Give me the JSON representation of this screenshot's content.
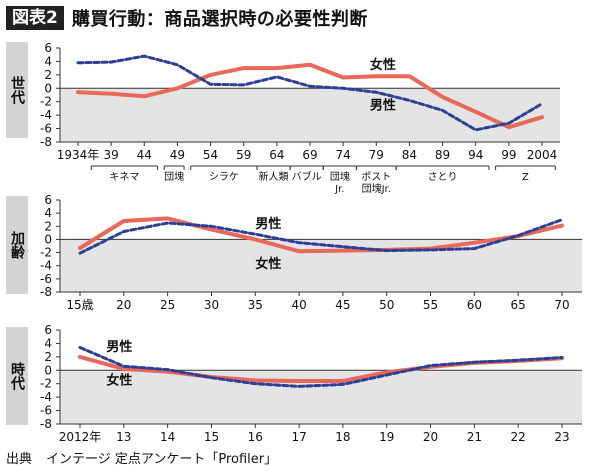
{
  "header": {
    "badge": "図表2",
    "title": "購買行動：商品選択時の必要性判断"
  },
  "footer": {
    "source_label": "出典",
    "source_text": "インテージ 定点アンケート「Profiler」"
  },
  "colors": {
    "female": "#e8685a",
    "male": "#2b3f95",
    "below_zero": "#e4e4e4",
    "zero_line": "#333333"
  },
  "chart_data": [
    {
      "type": "line",
      "panel_label": "世代",
      "x_tick_labels": [
        "1934年",
        "39",
        "44",
        "49",
        "54",
        "59",
        "64",
        "69",
        "74",
        "79",
        "84",
        "89",
        "94",
        "99",
        "2004"
      ],
      "x": [
        1934,
        1939,
        1944,
        1949,
        1954,
        1959,
        1964,
        1969,
        1974,
        1979,
        1984,
        1989,
        1994,
        1999,
        2004
      ],
      "ylim": [
        -8,
        6
      ],
      "yticks": [
        6,
        4,
        2,
        0,
        -2,
        -4,
        -6,
        -8
      ],
      "generation_groups": [
        {
          "label": "キネマ",
          "from": 1936,
          "to": 1946
        },
        {
          "label": "団塊",
          "from": 1947,
          "to": 1950
        },
        {
          "label": "シラケ",
          "from": 1951,
          "to": 1961
        },
        {
          "label": "新人類",
          "from": 1961,
          "to": 1966
        },
        {
          "label": "バブル",
          "from": 1966,
          "to": 1971
        },
        {
          "label": "団塊\nJr.",
          "from": 1971,
          "to": 1976
        },
        {
          "label": "ポスト\n団塊Jr.",
          "from": 1976,
          "to": 1982
        },
        {
          "label": "さとり",
          "from": 1982,
          "to": 1996
        },
        {
          "label": "Z",
          "from": 1997,
          "to": 2006
        }
      ],
      "series": [
        {
          "name": "女性",
          "style": "solid",
          "values": [
            -0.6,
            -0.8,
            -1.2,
            0.0,
            2.0,
            3.0,
            3.0,
            3.5,
            1.6,
            1.8,
            1.8,
            -1.3,
            -3.5,
            -5.8,
            -4.3
          ]
        },
        {
          "name": "男性",
          "style": "dashed",
          "values": [
            3.8,
            3.9,
            4.8,
            3.5,
            0.6,
            0.5,
            1.7,
            0.3,
            0.0,
            -0.6,
            -1.8,
            -3.3,
            -6.2,
            -5.2,
            -2.3
          ]
        }
      ],
      "annotations": [
        {
          "text": "女性",
          "x": 1980,
          "y": 3.6
        },
        {
          "text": "男性",
          "x": 1980,
          "y": -2.4
        }
      ]
    },
    {
      "type": "line",
      "panel_label": "加齢",
      "x_tick_labels": [
        "15歳",
        "20",
        "25",
        "30",
        "35",
        "40",
        "45",
        "50",
        "55",
        "60",
        "65",
        "70"
      ],
      "x": [
        15,
        20,
        25,
        30,
        35,
        40,
        45,
        50,
        55,
        60,
        65,
        70
      ],
      "ylim": [
        -8,
        6
      ],
      "yticks": [
        6,
        4,
        2,
        0,
        -2,
        -4,
        -6,
        -8
      ],
      "series": [
        {
          "name": "女性",
          "style": "solid",
          "values": [
            -1.3,
            2.8,
            3.2,
            1.5,
            0.0,
            -1.8,
            -1.7,
            -1.6,
            -1.4,
            -0.5,
            0.5,
            2.1
          ]
        },
        {
          "name": "男性",
          "style": "dashed",
          "values": [
            -2.1,
            1.2,
            2.5,
            2.0,
            0.8,
            -0.5,
            -1.1,
            -1.7,
            -1.6,
            -1.4,
            0.6,
            3.0
          ]
        }
      ],
      "annotations": [
        {
          "text": "男性",
          "x": 36.5,
          "y": 2.5
        },
        {
          "text": "女性",
          "x": 36.5,
          "y": -3.6
        }
      ]
    },
    {
      "type": "line",
      "panel_label": "時代",
      "x_tick_labels": [
        "2012年",
        "13",
        "14",
        "15",
        "16",
        "17",
        "18",
        "19",
        "20",
        "21",
        "22",
        "23"
      ],
      "x": [
        2012,
        2013,
        2014,
        2015,
        2016,
        2017,
        2018,
        2019,
        2020,
        2021,
        2022,
        2023
      ],
      "ylim": [
        -8,
        6
      ],
      "yticks": [
        6,
        4,
        2,
        0,
        -2,
        -4,
        -6,
        -8
      ],
      "series": [
        {
          "name": "女性",
          "style": "solid",
          "values": [
            2.0,
            0.2,
            -0.2,
            -1.0,
            -1.5,
            -1.6,
            -1.6,
            -0.3,
            0.5,
            1.1,
            1.4,
            1.8
          ]
        },
        {
          "name": "男性",
          "style": "dashed",
          "values": [
            3.4,
            0.6,
            0.1,
            -1.1,
            -2.0,
            -2.4,
            -2.1,
            -0.7,
            0.7,
            1.2,
            1.5,
            1.9
          ]
        }
      ],
      "annotations": [
        {
          "text": "男性",
          "x": 2012.9,
          "y": 3.6
        },
        {
          "text": "女性",
          "x": 2012.9,
          "y": -1.4
        }
      ]
    }
  ]
}
